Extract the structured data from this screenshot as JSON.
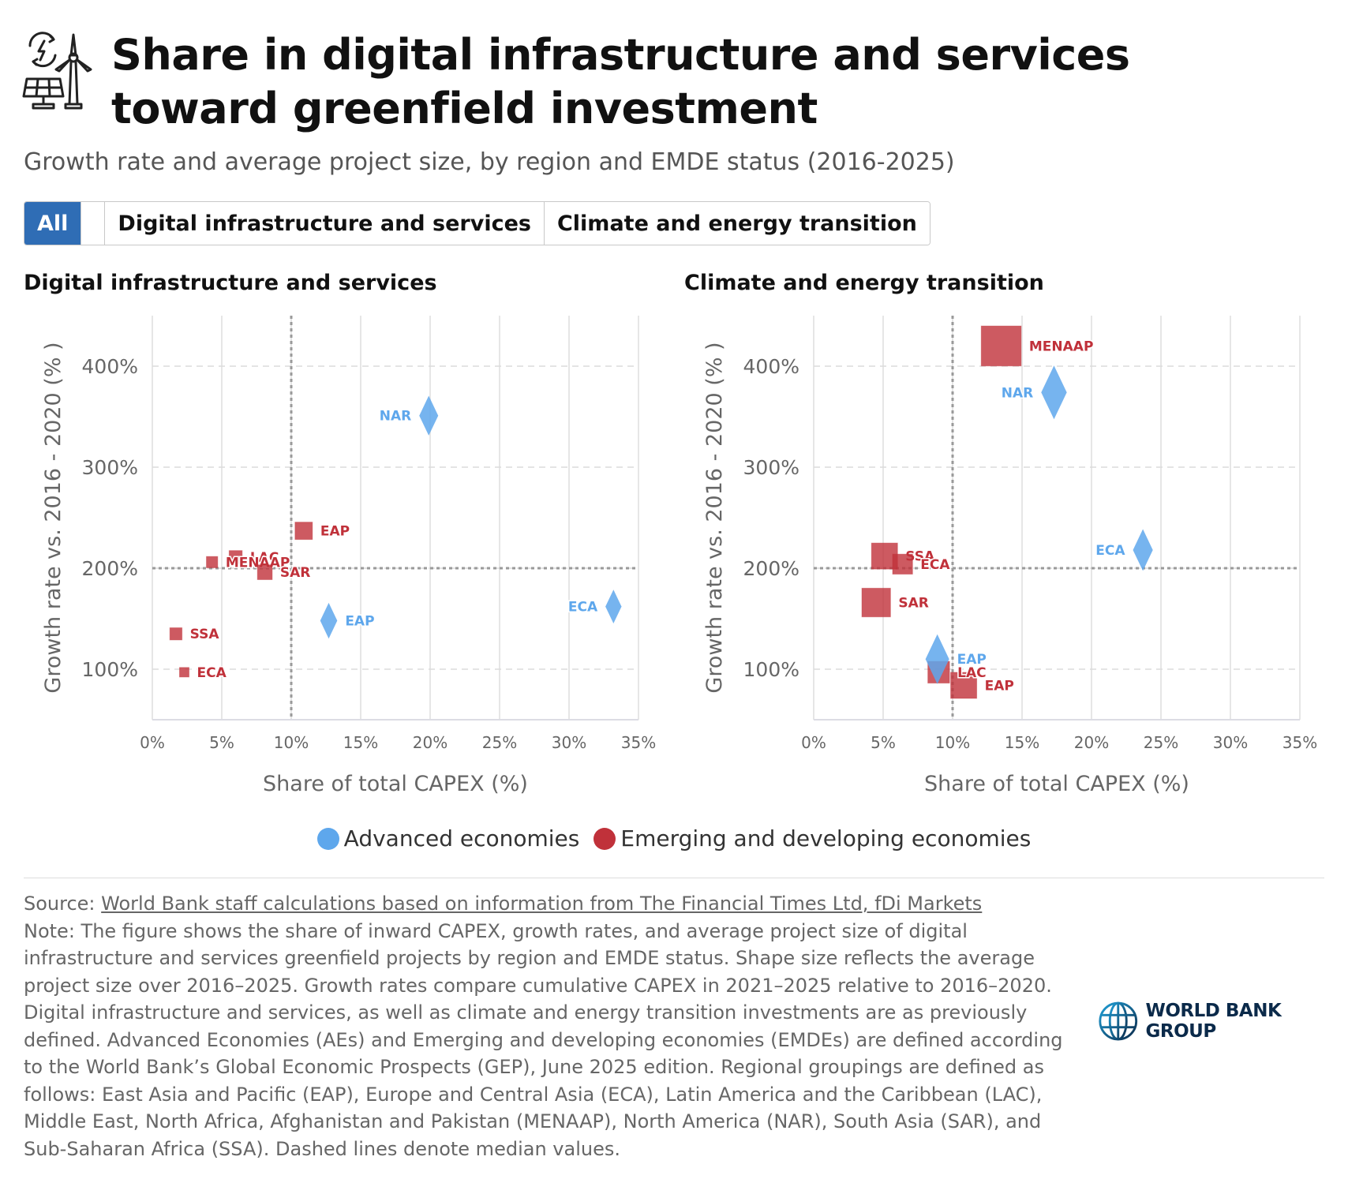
{
  "header": {
    "icon": "renewable-energy-icon",
    "title": "Share in digital infrastructure and services toward greenfield investment",
    "subtitle": "Growth rate and average project size, by region and EMDE status (2016-2025)"
  },
  "tabs": [
    {
      "label": "All",
      "active": true
    },
    {
      "label": "",
      "active": false
    },
    {
      "label": "Digital infrastructure and services",
      "active": false
    },
    {
      "label": "Climate and energy transition",
      "active": false
    }
  ],
  "colors": {
    "advanced": "#5ea7ec",
    "emerging": "#c0313a",
    "tab_active": "#2f6db5"
  },
  "chart_data": [
    {
      "type": "scatter",
      "title": "Digital infrastructure and services",
      "xlabel": "Share of total CAPEX (%)",
      "ylabel": "Growth rate vs. 2016 - 2020 (% )",
      "xlim": [
        0,
        35
      ],
      "ylim": [
        50,
        450
      ],
      "xticks": [
        "0%",
        "5%",
        "10%",
        "15%",
        "20%",
        "25%",
        "30%",
        "35%"
      ],
      "yticks": [
        "100%",
        "200%",
        "300%",
        "400%"
      ],
      "median_x": 10,
      "median_y": 200,
      "grid": true,
      "series": [
        {
          "name": "Advanced economies",
          "marker": "diamond",
          "points": [
            {
              "label": "NAR",
              "x": 19.9,
              "y": 351,
              "size": 1.0,
              "label_side": "left"
            },
            {
              "label": "ECA",
              "x": 33.2,
              "y": 162,
              "size": 0.85,
              "label_side": "left"
            },
            {
              "label": "EAP",
              "x": 12.7,
              "y": 148,
              "size": 0.9,
              "label_side": "right"
            }
          ]
        },
        {
          "name": "Emerging and developing economies",
          "marker": "square",
          "points": [
            {
              "label": "EAP",
              "x": 10.9,
              "y": 237,
              "size": 1.0,
              "label_side": "right"
            },
            {
              "label": "LAC",
              "x": 6.0,
              "y": 211,
              "size": 0.75,
              "label_side": "right"
            },
            {
              "label": "MENAAP",
              "x": 4.3,
              "y": 206,
              "size": 0.65,
              "label_side": "right"
            },
            {
              "label": "SAR",
              "x": 8.1,
              "y": 196,
              "size": 0.85,
              "label_side": "right"
            },
            {
              "label": "SSA",
              "x": 1.7,
              "y": 135,
              "size": 0.7,
              "label_side": "right"
            },
            {
              "label": "ECA",
              "x": 2.3,
              "y": 97,
              "size": 0.55,
              "label_side": "right"
            }
          ]
        }
      ]
    },
    {
      "type": "scatter",
      "title": "Climate and energy transition",
      "xlabel": "Share of total CAPEX (%)",
      "ylabel": "Growth rate vs. 2016 - 2020 (% )",
      "xlim": [
        0,
        35
      ],
      "ylim": [
        50,
        450
      ],
      "xticks": [
        "0%",
        "5%",
        "10%",
        "15%",
        "20%",
        "25%",
        "30%",
        "35%"
      ],
      "yticks": [
        "100%",
        "200%",
        "300%",
        "400%"
      ],
      "median_x": 10,
      "median_y": 200,
      "grid": true,
      "series": [
        {
          "name": "Advanced economies",
          "marker": "diamond",
          "points": [
            {
              "label": "NAR",
              "x": 17.3,
              "y": 374,
              "size": 1.35,
              "label_side": "left"
            },
            {
              "label": "ECA",
              "x": 23.7,
              "y": 218,
              "size": 1.05,
              "label_side": "left"
            },
            {
              "label": "EAP",
              "x": 8.9,
              "y": 110,
              "size": 1.25,
              "label_side": "right"
            }
          ]
        },
        {
          "name": "Emerging and developing economies",
          "marker": "square",
          "points": [
            {
              "label": "MENAAP",
              "x": 13.5,
              "y": 420,
              "size": 2.3,
              "label_side": "right"
            },
            {
              "label": "SSA",
              "x": 5.1,
              "y": 212,
              "size": 1.5,
              "label_side": "right"
            },
            {
              "label": "ECA",
              "x": 6.4,
              "y": 204,
              "size": 1.15,
              "label_side": "right"
            },
            {
              "label": "SAR",
              "x": 4.5,
              "y": 166,
              "size": 1.65,
              "label_side": "right"
            },
            {
              "label": "EAP",
              "x": 10.8,
              "y": 84,
              "size": 1.5,
              "label_side": "right"
            },
            {
              "label": "LAC",
              "x": 9.0,
              "y": 97,
              "size": 1.25,
              "label_side": "right"
            }
          ]
        }
      ]
    }
  ],
  "legend": [
    {
      "label": "Advanced economies",
      "color": "#5ea7ec"
    },
    {
      "label": "Emerging and developing economies",
      "color": "#c0313a"
    }
  ],
  "footer": {
    "source_prefix": "Source: ",
    "source_link": "World Bank staff calculations based on information from The Financial Times Ltd, fDi Markets",
    "note": "Note: The figure shows the share of inward CAPEX, growth rates, and average project size of digital infrastructure and services greenfield projects by region and EMDE status. Shape size reflects the average project size over 2016–2025. Growth rates compare cumulative CAPEX in 2021–2025 relative to 2016–2020. Digital infrastructure and services, as well as climate and energy transition investments are as previously defined. Advanced Economies (AEs) and Emerging and developing economies (EMDEs) are defined according to the World Bank’s Global Economic Prospects (GEP), June 2025 edition. Regional groupings are defined as follows: East Asia and Pacific (EAP), Europe and Central Asia (ECA), Latin America and the Caribbean (LAC), Middle East, North Africa, Afghanistan and Pakistan (MENAAP), North America (NAR), South Asia (SAR), and Sub-Saharan Africa (SSA). Dashed lines denote median values."
  },
  "logo": {
    "text": "WORLD BANK GROUP",
    "icon": "globe-icon"
  }
}
